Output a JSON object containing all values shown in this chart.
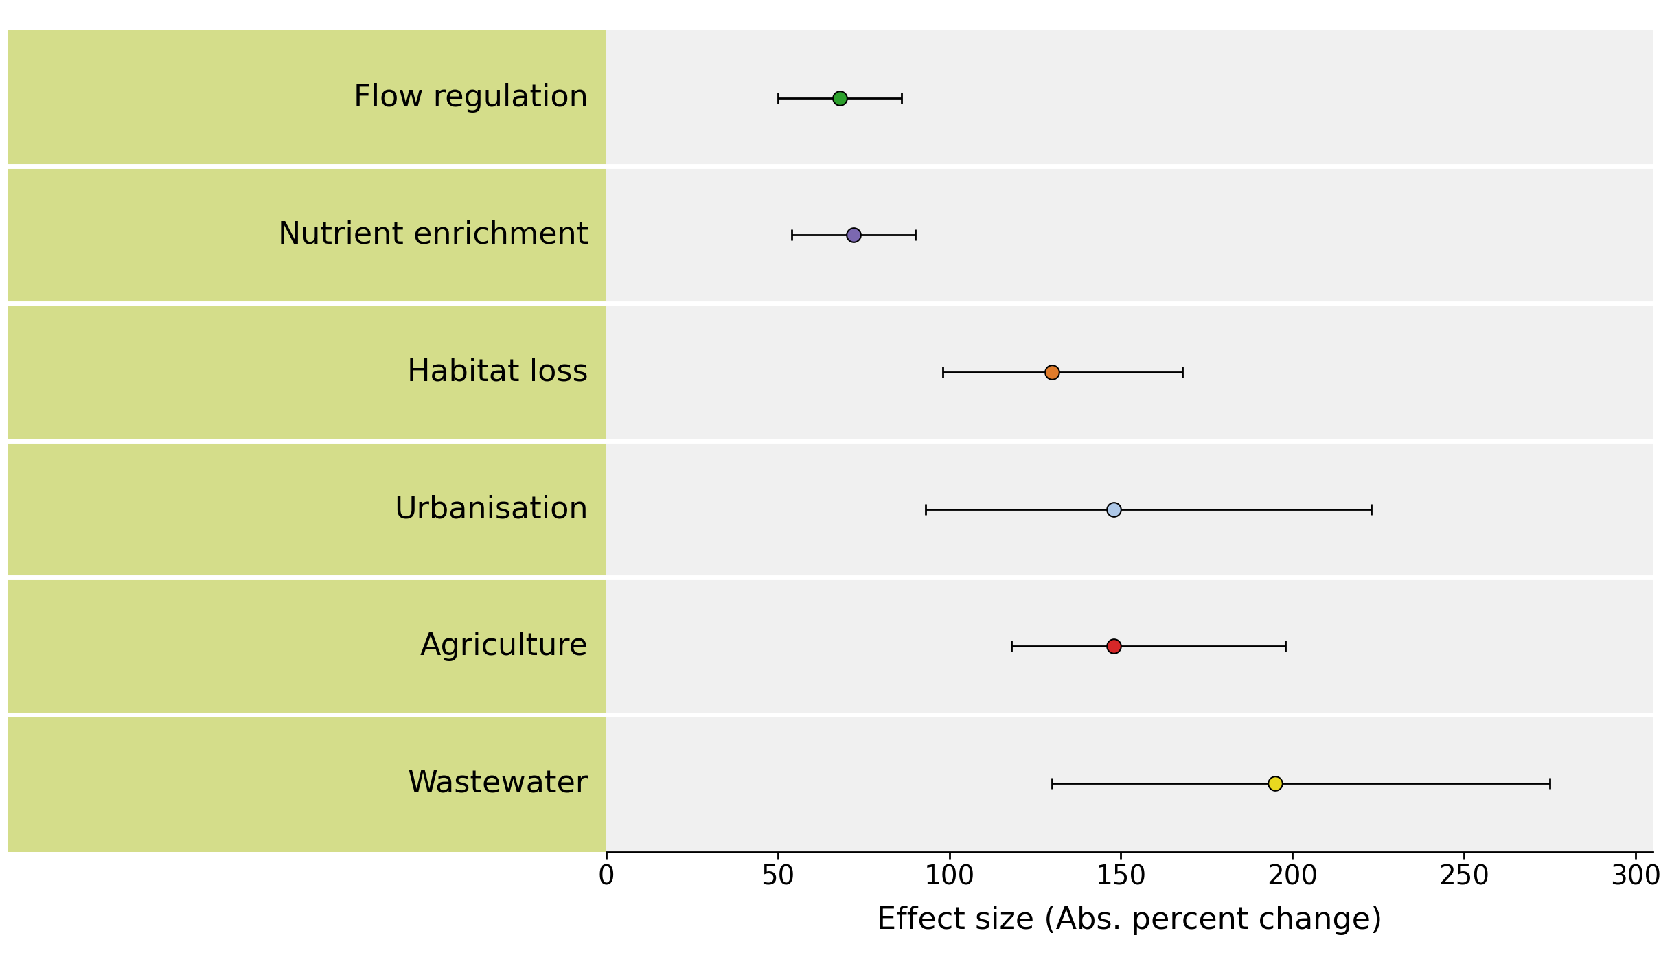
{
  "categories": [
    "Flow regulation",
    "Nutrient enrichment",
    "Habitat loss",
    "Urbanisation",
    "Agriculture",
    "Wastewater"
  ],
  "values": [
    68,
    72,
    130,
    148,
    148,
    195
  ],
  "xerr_left": [
    18,
    18,
    32,
    55,
    30,
    65
  ],
  "xerr_right": [
    18,
    18,
    38,
    75,
    50,
    80
  ],
  "colors": [
    "#2ca02c",
    "#7b68b0",
    "#e07b2a",
    "#aec8e8",
    "#d62728",
    "#e8d820"
  ],
  "xlim": [
    0,
    305
  ],
  "xticks": [
    0,
    50,
    100,
    150,
    200,
    250,
    300
  ],
  "xlabel": "Effect size (Abs. percent change)",
  "label_background_color": "#d4dd8a",
  "panel_bg": "#f0f0f0",
  "sep_color": "#ffffff",
  "marker_size": 220,
  "marker_linewidth": 1.5,
  "errorbar_linewidth": 2.0,
  "errorbar_capsize": 6,
  "xlabel_fontsize": 32,
  "tick_fontsize": 28,
  "label_fontsize": 32,
  "label_weight": "normal"
}
